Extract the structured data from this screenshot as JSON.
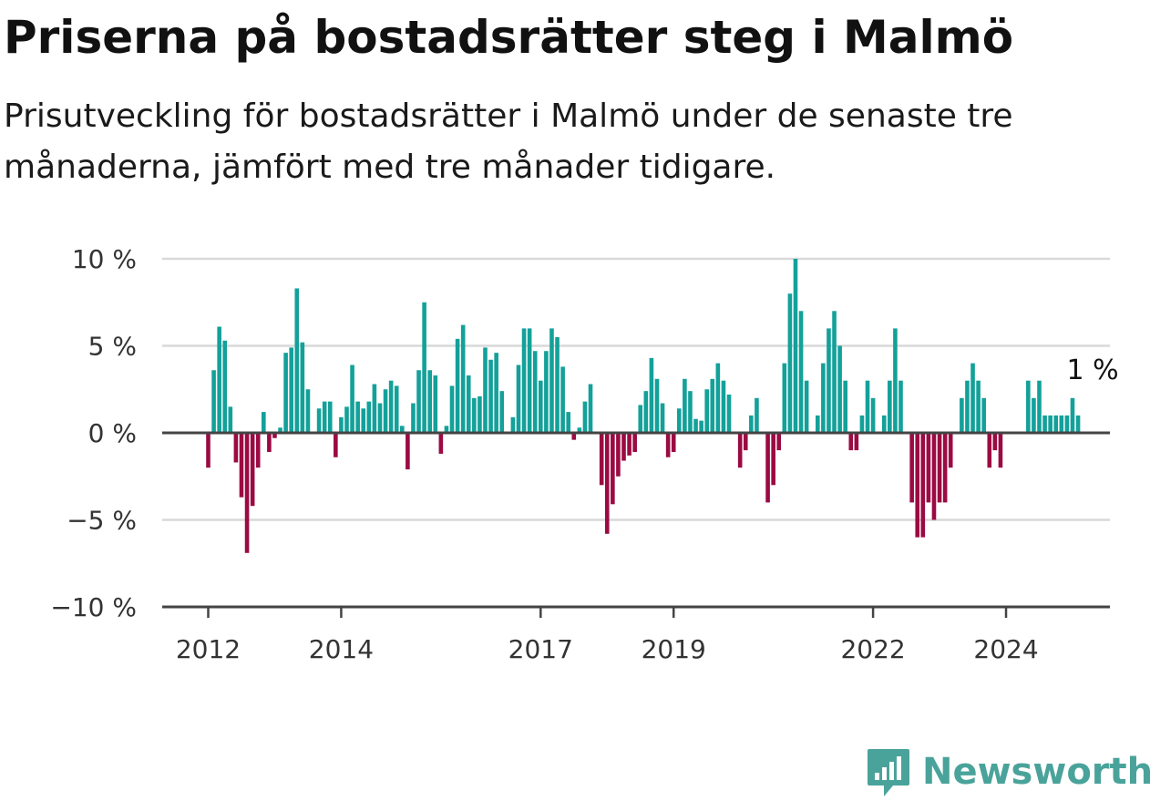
{
  "header": {
    "title": "Priserna på bostadsrätter steg i Malmö",
    "subtitle": "Prisutveckling för bostadsrätter i Malmö under de senaste tre månaderna, jämfört med tre månader tidigare."
  },
  "brand": {
    "name": "Newsworthy",
    "icon": "newsworthy-logo-icon",
    "color": "#4aa39a"
  },
  "chart_data": {
    "type": "bar",
    "x_start": "2012-01",
    "x_interval": "month",
    "values": [
      -2,
      3.6,
      6.1,
      5.3,
      1.5,
      -1.7,
      -3.7,
      -6.9,
      -4.2,
      -2,
      1.2,
      -1.1,
      -0.3,
      0.3,
      4.6,
      4.9,
      8.3,
      5.2,
      2.5,
      0,
      1.4,
      1.8,
      1.8,
      -1.4,
      0.9,
      1.5,
      3.9,
      1.8,
      1.4,
      1.8,
      2.8,
      1.7,
      2.5,
      3.0,
      2.7,
      0.4,
      -2.1,
      1.7,
      3.6,
      7.5,
      3.6,
      3.3,
      -1.2,
      0.4,
      2.7,
      5.4,
      6.2,
      3.3,
      2.0,
      2.1,
      4.9,
      4.2,
      4.6,
      2.4,
      0,
      0.9,
      3.9,
      6.0,
      6.0,
      4.7,
      3.0,
      4.7,
      6.0,
      5.5,
      3.8,
      1.2,
      -0.4,
      0.3,
      1.8,
      2.8,
      0,
      -3.0,
      -5.8,
      -4.1,
      -2.5,
      -1.6,
      -1.3,
      -1.1,
      1.6,
      2.4,
      4.3,
      3.1,
      1.7,
      -1.4,
      -1.1,
      1.4,
      3.1,
      2.4,
      0.8,
      0.7,
      2.5,
      3.1,
      4.0,
      3.0,
      2.2,
      0,
      -2.0,
      -1.0,
      1.0,
      2.0,
      0,
      -4.0,
      -3.0,
      -1.0,
      4.0,
      8.0,
      10.0,
      7.0,
      3.0,
      0,
      1.0,
      4.0,
      6.0,
      7.0,
      5.0,
      3.0,
      -1.0,
      -1.0,
      1.0,
      3.0,
      2.0,
      0,
      1.0,
      3.0,
      6.0,
      3.0,
      0,
      -4.0,
      -6.0,
      -6.0,
      -4.0,
      -5.0,
      -4.0,
      -4.0,
      -2.0,
      0,
      2.0,
      3.0,
      4.0,
      3.0,
      2.0,
      -2.0,
      -1.0,
      -2.0,
      0,
      0,
      0,
      0,
      3.0,
      2.0,
      3.0,
      1.0,
      1.0,
      1.0,
      1.0,
      1.0,
      2.0,
      1.0
    ],
    "x_tick_labels": [
      "2012",
      "2014",
      "2017",
      "2019",
      "2022",
      "2024"
    ],
    "x_tick_positions": [
      0,
      24,
      60,
      84,
      120,
      144
    ],
    "y_ticks": [
      10,
      5,
      0,
      -5,
      -10
    ],
    "y_tick_labels": [
      "10 %",
      "5 %",
      "0 %",
      "−5 %",
      "−10 %"
    ],
    "ylim": [
      -10,
      10
    ],
    "end_label": "1 %",
    "colors": {
      "positive": "#13a19a",
      "negative": "#9b0a43",
      "grid": "#d9d9d9",
      "zero_line": "#444444",
      "axis": "#444444"
    },
    "grid": true,
    "title": "",
    "xlabel": "",
    "ylabel": ""
  }
}
